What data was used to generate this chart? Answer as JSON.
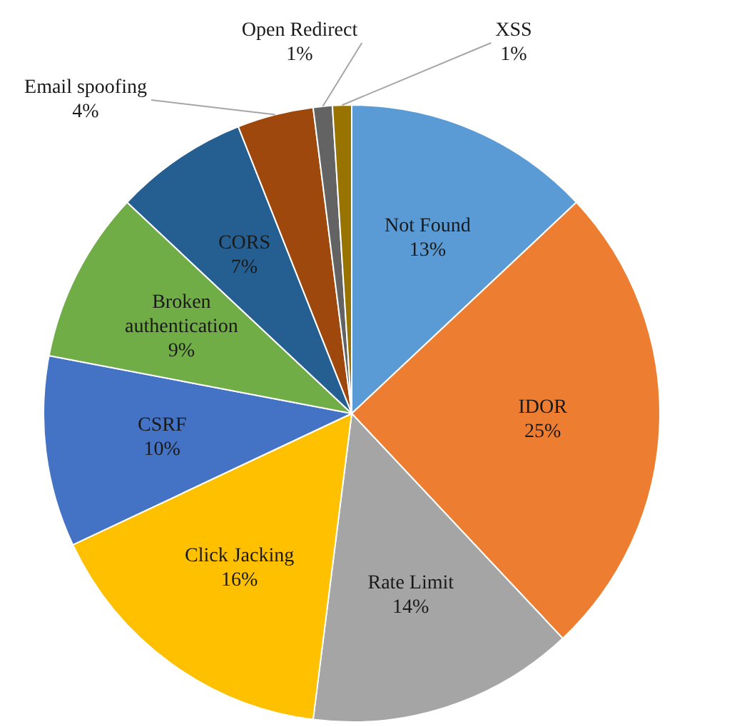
{
  "chart_data": {
    "type": "pie",
    "categories": [
      "Not Found",
      "IDOR",
      "Rate Limit",
      "Click Jacking",
      "CSRF",
      "Broken authentication",
      "CORS",
      "Email spoofing",
      "Open Redirect",
      "XSS"
    ],
    "values": [
      13,
      25,
      14,
      16,
      10,
      9,
      7,
      4,
      1,
      1
    ],
    "colors": [
      "#5b9bd5",
      "#ed7d31",
      "#a5a5a5",
      "#ffc000",
      "#4472c4",
      "#70ad47",
      "#255e91",
      "#9e480e",
      "#636363",
      "#997300"
    ],
    "value_labels": [
      "13%",
      "25%",
      "14%",
      "16%",
      "10%",
      "9%",
      "7%",
      "4%",
      "1%",
      "1%"
    ],
    "legend": false
  }
}
